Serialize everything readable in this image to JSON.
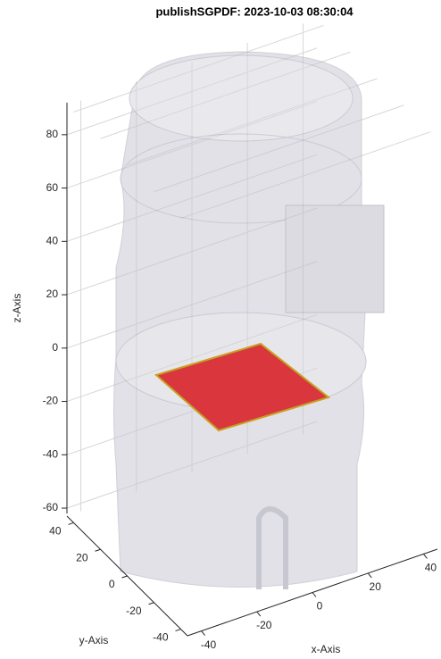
{
  "chart_data": {
    "type": "3d",
    "title": "publishSGPDF: 2023-10-03 08:30:04",
    "xlabel": "x-Axis",
    "ylabel": "y-Axis",
    "zlabel": "z-Axis",
    "xlim": [
      -45,
      45
    ],
    "xticks": [
      -40,
      -20,
      0,
      20,
      40
    ],
    "ylim": [
      -45,
      45
    ],
    "yticks": [
      -40,
      -20,
      0,
      20,
      40
    ],
    "zlim": [
      -62,
      92
    ],
    "zticks": [
      -60,
      -40,
      -20,
      0,
      20,
      40,
      60,
      80
    ],
    "grid": true,
    "color": "#d9363e"
  }
}
